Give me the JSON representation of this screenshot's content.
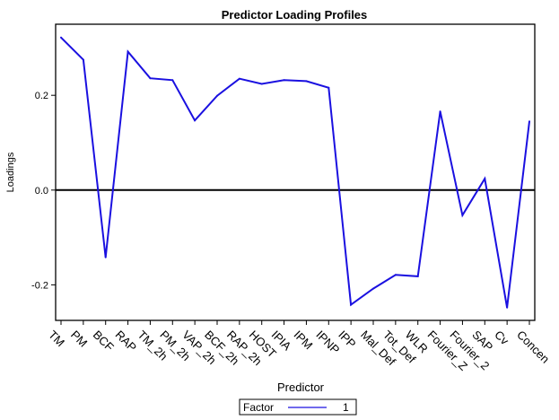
{
  "chart_data": {
    "type": "line",
    "title": "Predictor Loading Profiles",
    "xlabel": "Predictor",
    "ylabel": "Loadings",
    "categories": [
      "TM",
      "PM",
      "BCF",
      "RAP",
      "TM_2h",
      "PM_2h",
      "VAP_2h",
      "BCF_2h",
      "RAP_2h",
      "HOST",
      "IPIA",
      "IPM",
      "IPNP",
      "IPP",
      "Mal_Def",
      "Tot_Def",
      "WLR",
      "Fourier_Z",
      "Fourier_2",
      "SAP",
      "Cv",
      "Concen"
    ],
    "series": [
      {
        "name": "1",
        "values": [
          0.322,
          0.275,
          -0.142,
          0.292,
          0.236,
          0.232,
          0.147,
          0.199,
          0.235,
          0.224,
          0.232,
          0.23,
          0.216,
          -0.242,
          -0.208,
          -0.179,
          -0.182,
          0.166,
          -0.053,
          0.024,
          -0.248,
          0.145
        ]
      }
    ],
    "ylim": [
      -0.275,
      0.35
    ],
    "yticks": [
      -0.2,
      0.0,
      0.2
    ],
    "ytick_labels": [
      "-0.2",
      "0.0",
      "0.2"
    ],
    "reference_line": 0,
    "grid": false,
    "legend": {
      "placement": "bottom-center",
      "title": "Factor",
      "entries": [
        "1"
      ]
    },
    "colors": {
      "series": "#1a10e0",
      "reference": "#000000",
      "axes": "#000000"
    }
  }
}
